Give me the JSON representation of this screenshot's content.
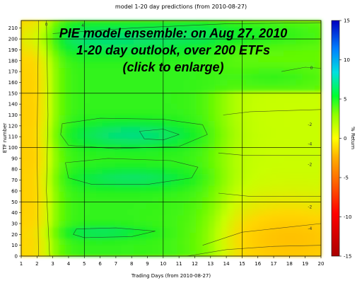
{
  "chart_data": {
    "type": "heatmap",
    "title": "model 1-20 day predictions (from 2010-08-27)",
    "xlabel": "Trading Days (from 2010-08-27)",
    "ylabel": "ETF number",
    "colorbar_label": "% Return",
    "x_ticks": [
      "1",
      "2",
      "3",
      "4",
      "5",
      "6",
      "7",
      "8",
      "9",
      "10",
      "11",
      "12",
      "13",
      "14",
      "15",
      "16",
      "17",
      "18",
      "19",
      "20"
    ],
    "y_ticks": [
      "0",
      "10",
      "20",
      "30",
      "40",
      "50",
      "60",
      "70",
      "80",
      "90",
      "100",
      "110",
      "120",
      "130",
      "140",
      "150",
      "160",
      "170",
      "180",
      "190",
      "200",
      "210"
    ],
    "colorbar_ticks": [
      "15",
      "10",
      "5",
      "0",
      "-5",
      "-10",
      "-15"
    ],
    "xlim": [
      1,
      20
    ],
    "ylim": [
      0,
      217
    ],
    "zlim": [
      -15,
      15
    ],
    "grid": true,
    "contour_labels": [
      {
        "text": "0",
        "x": 2.6,
        "y": 212
      },
      {
        "text": "4",
        "x": 4.9,
        "y": 211
      },
      {
        "text": "0",
        "x": 19.4,
        "y": 172
      },
      {
        "text": "-2",
        "x": 19.3,
        "y": 120
      },
      {
        "text": "-2",
        "x": 19.3,
        "y": 83
      },
      {
        "text": "-4",
        "x": 19.3,
        "y": 102
      },
      {
        "text": "-2",
        "x": 19.3,
        "y": 44
      },
      {
        "text": "-4",
        "x": 19.3,
        "y": 24
      }
    ],
    "overlay_text": [
      "PIE model ensemble: on Aug 27, 2010",
      "1-20 day outlook, over 200 ETFs",
      "(click to enlarge)"
    ]
  },
  "colors": {
    "scale": [
      "#cc0000",
      "#ff0000",
      "#ff6600",
      "#ffa500",
      "#ffd700",
      "#ffff00",
      "#c8ff00",
      "#7cfc00",
      "#00ff00",
      "#00e0a0",
      "#00a0ff",
      "#0000ff",
      "#0000b0"
    ]
  }
}
